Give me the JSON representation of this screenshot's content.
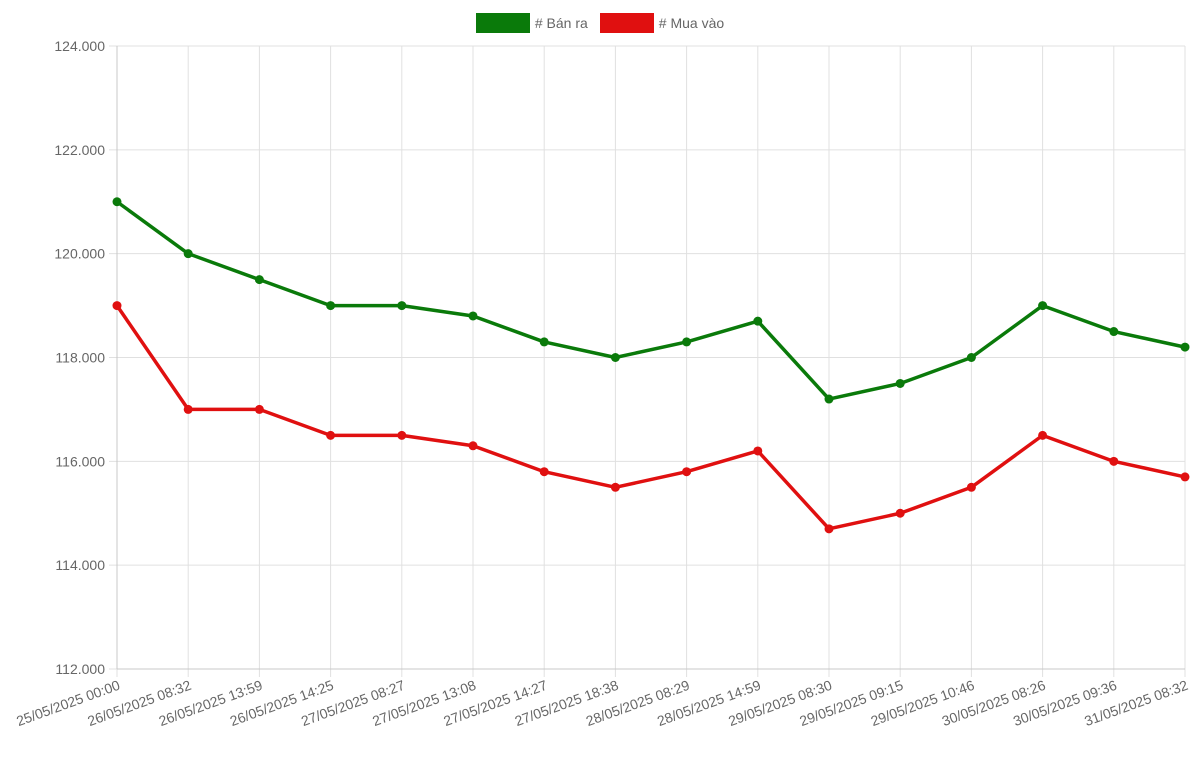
{
  "chart_data": {
    "type": "line",
    "categories": [
      "25/05/2025 00:00",
      "26/05/2025 08:32",
      "26/05/2025 13:59",
      "26/05/2025 14:25",
      "27/05/2025 08:27",
      "27/05/2025 13:08",
      "27/05/2025 14:27",
      "27/05/2025 18:38",
      "28/05/2025 08:29",
      "28/05/2025 14:59",
      "29/05/2025 08:30",
      "29/05/2025 09:15",
      "29/05/2025 10:46",
      "30/05/2025 08:26",
      "30/05/2025 09:36",
      "31/05/2025 08:32"
    ],
    "series": [
      {
        "name": "# Bán ra",
        "color": "#0a7a0a",
        "values": [
          121000,
          120000,
          119500,
          119000,
          119000,
          118800,
          118300,
          118000,
          118300,
          118700,
          117200,
          117500,
          118000,
          119000,
          118500,
          118200
        ]
      },
      {
        "name": "# Mua vào",
        "color": "#e01010",
        "values": [
          119000,
          117000,
          117000,
          116500,
          116500,
          116300,
          115800,
          115500,
          115800,
          116200,
          114700,
          115000,
          115500,
          116500,
          116000,
          115700
        ]
      }
    ],
    "ylim": [
      112000,
      124000
    ],
    "yticks": [
      "112.000",
      "114.000",
      "116.000",
      "118.000",
      "120.000",
      "122.000",
      "124.000"
    ],
    "grid": true,
    "legend": "top-center"
  }
}
